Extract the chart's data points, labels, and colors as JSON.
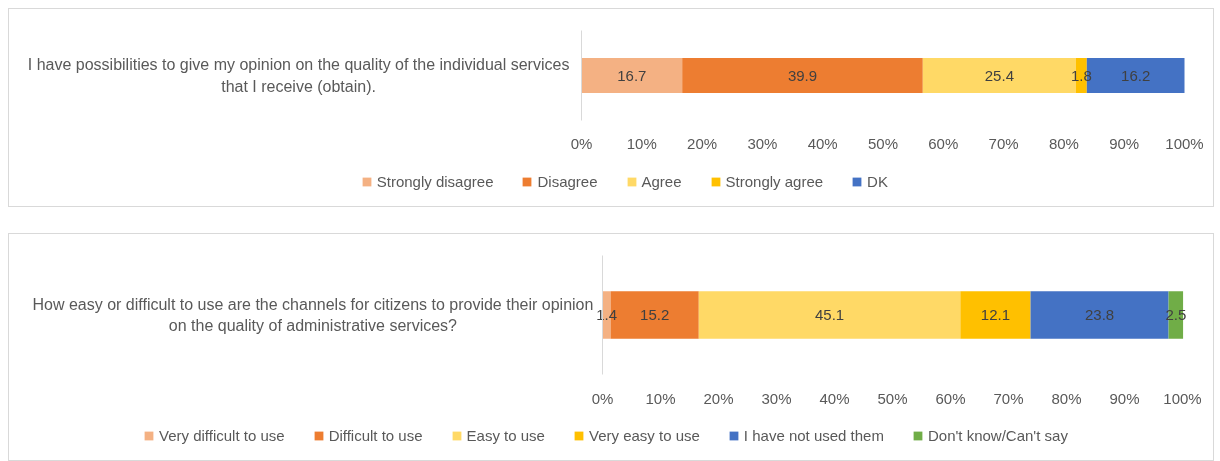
{
  "chart_data": [
    {
      "type": "bar",
      "orientation": "horizontal",
      "stacked": true,
      "categories": [
        "I have possibilities to give my opinion on the quality of the individual services that I receive (obtain)."
      ],
      "series": [
        {
          "name": "Strongly disagree",
          "color": "#f4b183",
          "values": [
            16.7
          ]
        },
        {
          "name": "Disagree",
          "color": "#ed7d31",
          "values": [
            39.9
          ]
        },
        {
          "name": "Agree",
          "color": "#ffd966",
          "values": [
            25.4
          ]
        },
        {
          "name": "Strongly agree",
          "color": "#ffc000",
          "values": [
            1.8
          ]
        },
        {
          "name": "DK",
          "color": "#4472c4",
          "values": [
            16.2
          ]
        }
      ],
      "xlim": [
        0,
        100
      ],
      "xticks": [
        {
          "value": 0,
          "label": "0%"
        },
        {
          "value": 10,
          "label": "10%"
        },
        {
          "value": 20,
          "label": "20%"
        },
        {
          "value": 30,
          "label": "30%"
        },
        {
          "value": 40,
          "label": "40%"
        },
        {
          "value": 50,
          "label": "50%"
        },
        {
          "value": 60,
          "label": "60%"
        },
        {
          "value": 70,
          "label": "70%"
        },
        {
          "value": 80,
          "label": "80%"
        },
        {
          "value": 90,
          "label": "90%"
        },
        {
          "value": 100,
          "label": "100%"
        }
      ],
      "data_labels": true,
      "legend": "bottom"
    },
    {
      "type": "bar",
      "orientation": "horizontal",
      "stacked": true,
      "categories": [
        "How easy or difficult to use are the channels for citizens to provide their opinion on the quality of administrative services?"
      ],
      "series": [
        {
          "name": "Very difficult to use",
          "color": "#f4b183",
          "values": [
            1.4
          ]
        },
        {
          "name": "Difficult to use",
          "color": "#ed7d31",
          "values": [
            15.2
          ]
        },
        {
          "name": "Easy to use",
          "color": "#ffd966",
          "values": [
            45.1
          ]
        },
        {
          "name": "Very easy to use",
          "color": "#ffc000",
          "values": [
            12.1
          ]
        },
        {
          "name": "I have not used them",
          "color": "#4472c4",
          "values": [
            23.8
          ]
        },
        {
          "name": "Don't know/Can't say",
          "color": "#70ad47",
          "values": [
            2.5
          ]
        }
      ],
      "xlim": [
        0,
        100
      ],
      "xticks": [
        {
          "value": 0,
          "label": "0%"
        },
        {
          "value": 10,
          "label": "10%"
        },
        {
          "value": 20,
          "label": "20%"
        },
        {
          "value": 30,
          "label": "30%"
        },
        {
          "value": 40,
          "label": "40%"
        },
        {
          "value": 50,
          "label": "50%"
        },
        {
          "value": 60,
          "label": "60%"
        },
        {
          "value": 70,
          "label": "70%"
        },
        {
          "value": 80,
          "label": "80%"
        },
        {
          "value": 90,
          "label": "90%"
        },
        {
          "value": 100,
          "label": "100%"
        }
      ],
      "data_labels": true,
      "legend": "bottom"
    }
  ]
}
